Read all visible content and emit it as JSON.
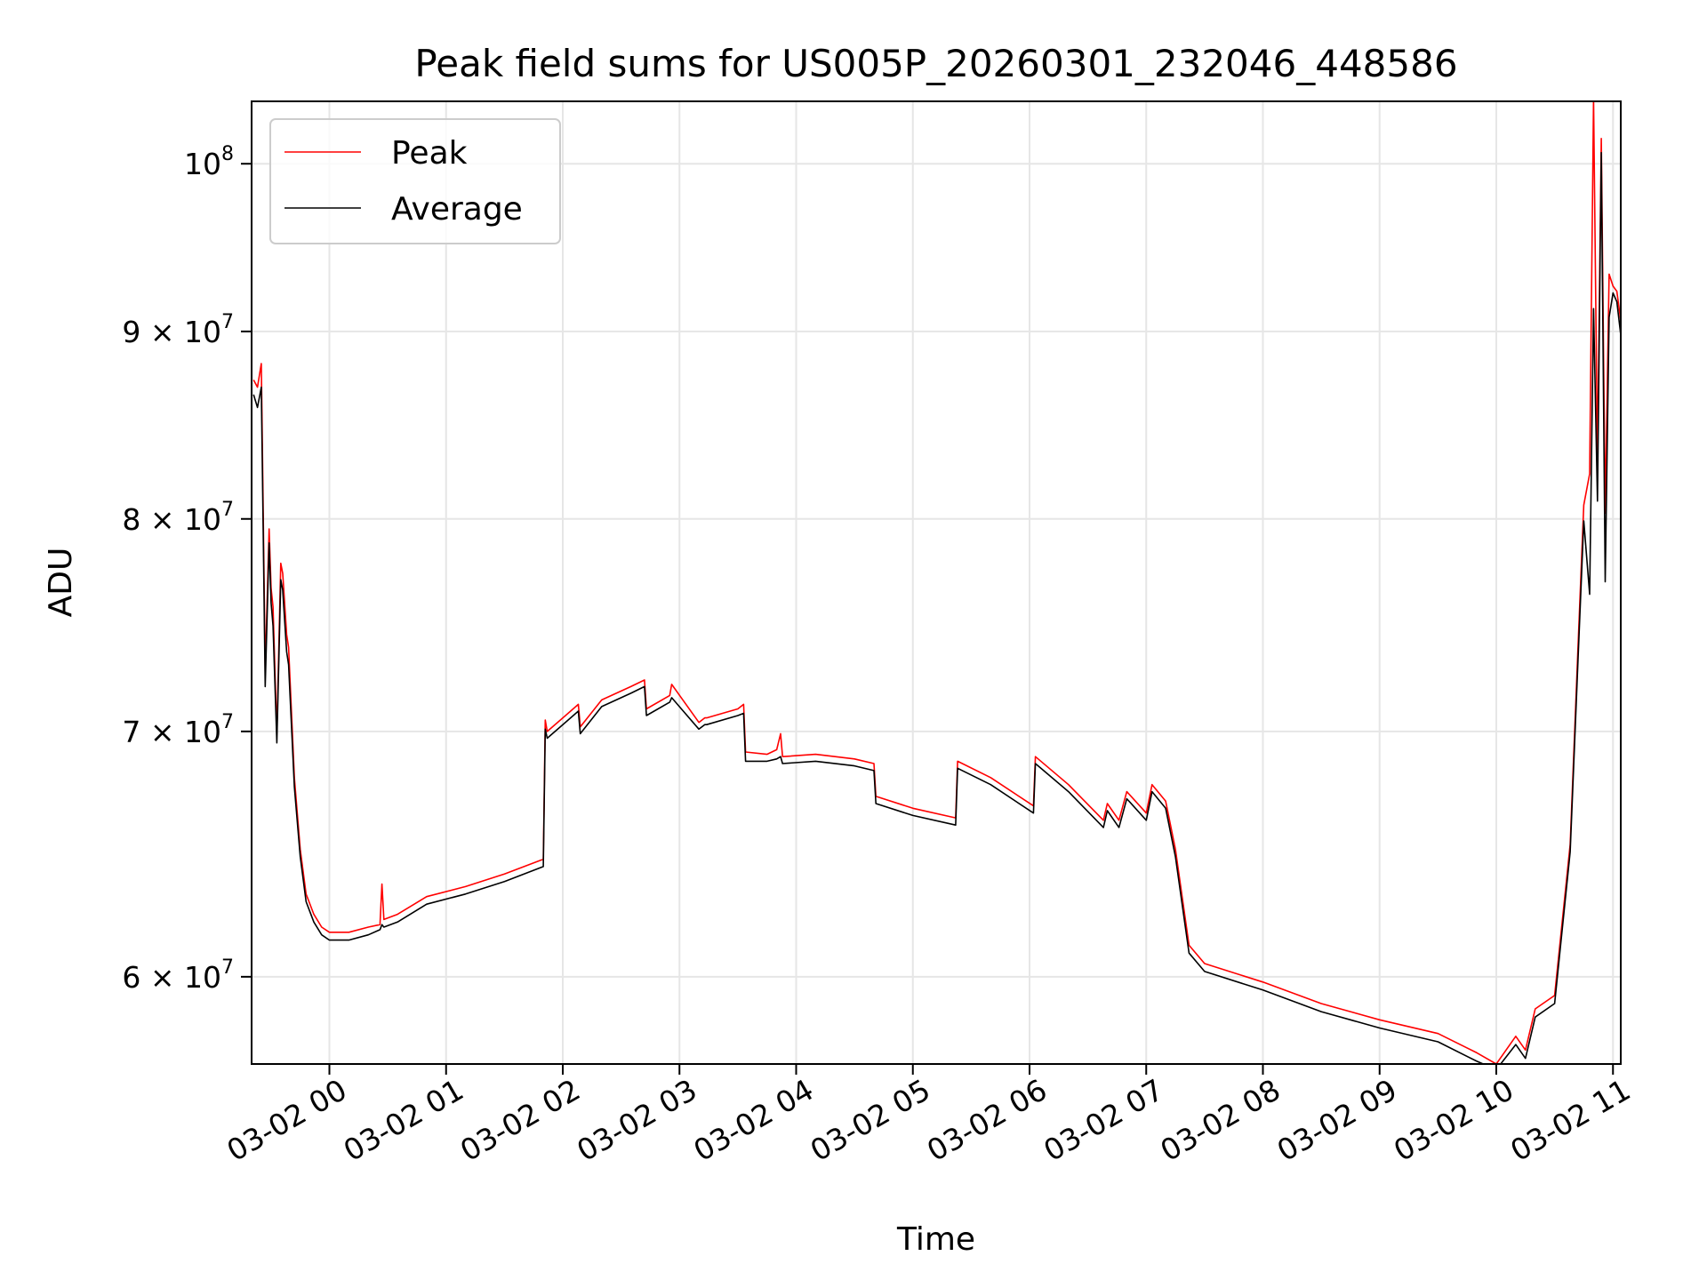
{
  "chart_data": {
    "type": "line",
    "title": "Peak field sums for US005P_20260301_232046_448586",
    "xlabel": "Time",
    "ylabel": "ADU",
    "yscale": "log",
    "ylim": [
      56800000,
      104000000
    ],
    "xlim": [
      "2026-03-01 23:20",
      "2026-03-02 11:04"
    ],
    "grid": true,
    "legend_position": "top-left",
    "x_ticks": [
      {
        "at": "2026-03-02 00:00",
        "label": "03-02 00"
      },
      {
        "at": "2026-03-02 01:00",
        "label": "03-02 01"
      },
      {
        "at": "2026-03-02 02:00",
        "label": "03-02 02"
      },
      {
        "at": "2026-03-02 03:00",
        "label": "03-02 03"
      },
      {
        "at": "2026-03-02 04:00",
        "label": "03-02 04"
      },
      {
        "at": "2026-03-02 05:00",
        "label": "03-02 05"
      },
      {
        "at": "2026-03-02 06:00",
        "label": "03-02 06"
      },
      {
        "at": "2026-03-02 07:00",
        "label": "03-02 07"
      },
      {
        "at": "2026-03-02 08:00",
        "label": "03-02 08"
      },
      {
        "at": "2026-03-02 09:00",
        "label": "03-02 09"
      },
      {
        "at": "2026-03-02 10:00",
        "label": "03-02 10"
      },
      {
        "at": "2026-03-02 11:00",
        "label": "03-02 11"
      }
    ],
    "y_ticks": [
      {
        "value": 60000000,
        "mantissa": "6 × 10",
        "exponent": "7"
      },
      {
        "value": 70000000,
        "mantissa": "7 × 10",
        "exponent": "7"
      },
      {
        "value": 80000000,
        "mantissa": "8 × 10",
        "exponent": "7"
      },
      {
        "value": 90000000,
        "mantissa": "9 × 10",
        "exponent": "7"
      },
      {
        "value": 100000000,
        "mantissa": "10",
        "exponent": "8"
      }
    ],
    "series": [
      {
        "name": "Peak",
        "color": "#ff0000",
        "x": [
          "2026-03-01 23:21",
          "2026-03-01 23:23",
          "2026-03-01 23:25",
          "2026-03-01 23:26",
          "2026-03-01 23:27",
          "2026-03-01 23:29",
          "2026-03-01 23:30",
          "2026-03-01 23:31",
          "2026-03-01 23:33",
          "2026-03-01 23:35",
          "2026-03-01 23:36",
          "2026-03-01 23:38",
          "2026-03-01 23:39",
          "2026-03-01 23:42",
          "2026-03-01 23:45",
          "2026-03-01 23:48",
          "2026-03-01 23:52",
          "2026-03-01 23:56",
          "2026-03-02 00:00",
          "2026-03-02 00:10",
          "2026-03-02 00:20",
          "2026-03-02 00:26",
          "2026-03-02 00:27",
          "2026-03-02 00:28",
          "2026-03-02 00:35",
          "2026-03-02 00:50",
          "2026-03-02 01:10",
          "2026-03-02 01:30",
          "2026-03-02 01:50",
          "2026-03-02 01:51",
          "2026-03-02 01:52",
          "2026-03-02 02:08",
          "2026-03-02 02:09",
          "2026-03-02 02:20",
          "2026-03-02 02:35",
          "2026-03-02 02:42",
          "2026-03-02 02:43",
          "2026-03-02 02:55",
          "2026-03-02 02:56",
          "2026-03-02 03:10",
          "2026-03-02 03:13",
          "2026-03-02 03:14",
          "2026-03-02 03:30",
          "2026-03-02 03:33",
          "2026-03-02 03:34",
          "2026-03-02 03:45",
          "2026-03-02 03:50",
          "2026-03-02 03:52",
          "2026-03-02 03:53",
          "2026-03-02 04:10",
          "2026-03-02 04:30",
          "2026-03-02 04:40",
          "2026-03-02 04:41",
          "2026-03-02 05:00",
          "2026-03-02 05:22",
          "2026-03-02 05:23",
          "2026-03-02 05:40",
          "2026-03-02 06:02",
          "2026-03-02 06:03",
          "2026-03-02 06:20",
          "2026-03-02 06:38",
          "2026-03-02 06:40",
          "2026-03-02 06:46",
          "2026-03-02 06:50",
          "2026-03-02 07:00",
          "2026-03-02 07:03",
          "2026-03-02 07:10",
          "2026-03-02 07:15",
          "2026-03-02 07:22",
          "2026-03-02 07:30",
          "2026-03-02 08:00",
          "2026-03-02 08:30",
          "2026-03-02 09:00",
          "2026-03-02 09:30",
          "2026-03-02 09:50",
          "2026-03-02 10:00",
          "2026-03-02 10:10",
          "2026-03-02 10:15",
          "2026-03-02 10:20",
          "2026-03-02 10:30",
          "2026-03-02 10:38",
          "2026-03-02 10:42",
          "2026-03-02 10:45",
          "2026-03-02 10:48",
          "2026-03-02 10:50",
          "2026-03-02 10:52",
          "2026-03-02 10:54",
          "2026-03-02 10:56",
          "2026-03-02 10:58",
          "2026-03-02 11:00",
          "2026-03-02 11:02",
          "2026-03-02 11:04"
        ],
        "y": [
          87300000,
          86900000,
          88200000,
          80200000,
          72700000,
          79500000,
          76600000,
          75700000,
          69900000,
          77800000,
          77300000,
          74400000,
          73800000,
          68000000,
          65000000,
          63200000,
          62400000,
          61900000,
          61700000,
          61700000,
          61900000,
          62000000,
          63600000,
          62200000,
          62400000,
          63100000,
          63500000,
          64000000,
          64600000,
          70500000,
          70000000,
          71200000,
          70200000,
          71400000,
          72000000,
          72300000,
          71000000,
          71600000,
          72100000,
          70400000,
          70600000,
          70600000,
          71000000,
          71200000,
          69100000,
          69000000,
          69200000,
          69900000,
          68900000,
          69000000,
          68800000,
          68600000,
          67200000,
          66700000,
          66300000,
          68700000,
          68000000,
          66800000,
          68900000,
          67700000,
          66200000,
          66900000,
          66200000,
          67400000,
          66500000,
          67700000,
          67000000,
          65000000,
          61200000,
          60500000,
          59800000,
          59000000,
          58400000,
          57900000,
          57200000,
          56800000,
          57800000,
          57300000,
          58800000,
          59300000,
          65200000,
          73800000,
          80700000,
          82300000,
          104200000,
          83000000,
          101600000,
          80300000,
          93300000,
          92600000,
          92300000,
          90600000
        ]
      },
      {
        "name": "Average",
        "color": "#000000",
        "x": [
          "2026-03-01 23:21",
          "2026-03-01 23:23",
          "2026-03-01 23:25",
          "2026-03-01 23:26",
          "2026-03-01 23:27",
          "2026-03-01 23:29",
          "2026-03-01 23:30",
          "2026-03-01 23:31",
          "2026-03-01 23:33",
          "2026-03-01 23:35",
          "2026-03-01 23:36",
          "2026-03-01 23:38",
          "2026-03-01 23:39",
          "2026-03-01 23:42",
          "2026-03-01 23:45",
          "2026-03-01 23:48",
          "2026-03-01 23:52",
          "2026-03-01 23:56",
          "2026-03-02 00:00",
          "2026-03-02 00:10",
          "2026-03-02 00:20",
          "2026-03-02 00:26",
          "2026-03-02 00:27",
          "2026-03-02 00:28",
          "2026-03-02 00:35",
          "2026-03-02 00:50",
          "2026-03-02 01:10",
          "2026-03-02 01:30",
          "2026-03-02 01:50",
          "2026-03-02 01:51",
          "2026-03-02 01:52",
          "2026-03-02 02:08",
          "2026-03-02 02:09",
          "2026-03-02 02:20",
          "2026-03-02 02:35",
          "2026-03-02 02:42",
          "2026-03-02 02:43",
          "2026-03-02 02:55",
          "2026-03-02 02:56",
          "2026-03-02 03:10",
          "2026-03-02 03:13",
          "2026-03-02 03:14",
          "2026-03-02 03:30",
          "2026-03-02 03:33",
          "2026-03-02 03:34",
          "2026-03-02 03:45",
          "2026-03-02 03:50",
          "2026-03-02 03:52",
          "2026-03-02 03:53",
          "2026-03-02 04:10",
          "2026-03-02 04:30",
          "2026-03-02 04:40",
          "2026-03-02 04:41",
          "2026-03-02 05:00",
          "2026-03-02 05:22",
          "2026-03-02 05:23",
          "2026-03-02 05:40",
          "2026-03-02 06:02",
          "2026-03-02 06:03",
          "2026-03-02 06:20",
          "2026-03-02 06:38",
          "2026-03-02 06:40",
          "2026-03-02 06:46",
          "2026-03-02 06:50",
          "2026-03-02 07:00",
          "2026-03-02 07:03",
          "2026-03-02 07:10",
          "2026-03-02 07:15",
          "2026-03-02 07:22",
          "2026-03-02 07:30",
          "2026-03-02 08:00",
          "2026-03-02 08:30",
          "2026-03-02 09:00",
          "2026-03-02 09:30",
          "2026-03-02 09:50",
          "2026-03-02 10:00",
          "2026-03-02 10:10",
          "2026-03-02 10:15",
          "2026-03-02 10:20",
          "2026-03-02 10:30",
          "2026-03-02 10:38",
          "2026-03-02 10:42",
          "2026-03-02 10:45",
          "2026-03-02 10:48",
          "2026-03-02 10:50",
          "2026-03-02 10:52",
          "2026-03-02 10:54",
          "2026-03-02 10:56",
          "2026-03-02 10:58",
          "2026-03-02 11:00",
          "2026-03-02 11:02",
          "2026-03-02 11:04"
        ],
        "y": [
          86500000,
          85800000,
          86900000,
          79200000,
          72000000,
          78800000,
          75900000,
          74800000,
          69500000,
          77000000,
          76500000,
          73600000,
          73000000,
          67600000,
          64700000,
          62900000,
          62100000,
          61600000,
          61400000,
          61400000,
          61600000,
          61800000,
          62000000,
          61900000,
          62100000,
          62800000,
          63200000,
          63700000,
          64300000,
          70100000,
          69700000,
          70900000,
          69900000,
          71100000,
          71700000,
          72000000,
          70700000,
          71300000,
          71500000,
          70100000,
          70300000,
          70300000,
          70700000,
          70800000,
          68700000,
          68700000,
          68800000,
          68900000,
          68600000,
          68700000,
          68500000,
          68300000,
          66900000,
          66400000,
          66000000,
          68400000,
          67700000,
          66500000,
          68600000,
          67400000,
          65900000,
          66600000,
          65900000,
          67100000,
          66200000,
          67400000,
          66700000,
          64700000,
          60900000,
          60200000,
          59500000,
          58700000,
          58100000,
          57600000,
          56900000,
          56600000,
          57500000,
          57000000,
          58500000,
          59000000,
          64900000,
          73200000,
          79900000,
          76300000,
          91300000,
          80900000,
          100700000,
          76900000,
          90800000,
          92200000,
          91700000,
          89800000
        ]
      }
    ]
  }
}
